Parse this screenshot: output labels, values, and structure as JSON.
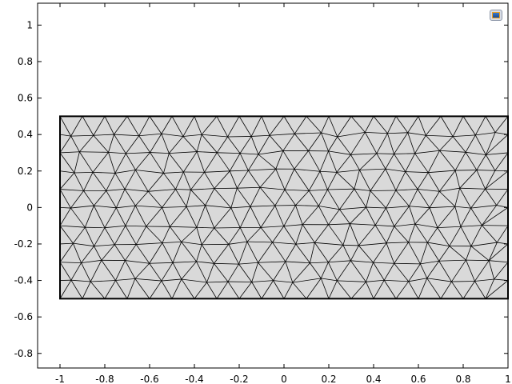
{
  "toolbar": {
    "view_icon": "zoom-extents-icon"
  },
  "colors": {
    "background": "#ffffff",
    "domain_fill": "#d9d9d9",
    "mesh_edge": "#000000",
    "axis": "#000000"
  },
  "chart_data": {
    "type": "mesh",
    "title": "",
    "xlabel": "",
    "ylabel": "",
    "xlim": [
      -1.1,
      1.0
    ],
    "ylim": [
      -0.88,
      1.12
    ],
    "x_ticks": [
      -1,
      -0.8,
      -0.6,
      -0.4,
      -0.2,
      0,
      0.2,
      0.4,
      0.6,
      0.8,
      1
    ],
    "x_tick_labels": [
      "-1",
      "-0.8",
      "-0.6",
      "-0.4",
      "-0.2",
      "0",
      "0.2",
      "0.4",
      "0.6",
      "0.8",
      "1"
    ],
    "y_ticks": [
      1,
      0.8,
      0.6,
      0.4,
      0.2,
      0,
      -0.2,
      -0.4,
      -0.6,
      -0.8
    ],
    "y_tick_labels": [
      "1",
      "0.8",
      "0.6",
      "0.4",
      "0.2",
      "0",
      "-0.2",
      "-0.4",
      "-0.6",
      "-0.8"
    ],
    "geometry": {
      "shape": "rectangle",
      "x": [
        -1,
        1
      ],
      "y": [
        -0.5,
        0.5
      ]
    },
    "mesh": {
      "element_type": "triangle",
      "rows": 10,
      "cols": 20
    },
    "grid": false,
    "legend": "none"
  }
}
